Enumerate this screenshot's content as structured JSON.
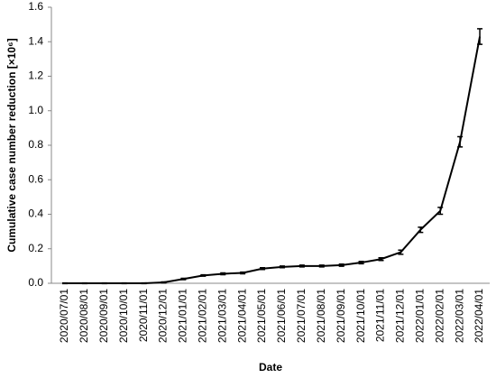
{
  "chart_data": {
    "type": "line",
    "ylabel": "Cumulative case number reduction [×10⁶]",
    "xlabel": "Date",
    "categories": [
      "2020/07/01",
      "2020/08/01",
      "2020/09/01",
      "2020/10/01",
      "2020/11/01",
      "2020/12/01",
      "2021/01/01",
      "2021/02/01",
      "2021/03/01",
      "2021/04/01",
      "2021/05/01",
      "2021/06/01",
      "2021/07/01",
      "2021/08/01",
      "2021/09/01",
      "2021/10/01",
      "2021/11/01",
      "2021/12/01",
      "2022/01/01",
      "2022/02/01",
      "2022/03/01",
      "2022/04/01"
    ],
    "series": [
      {
        "color": "#000000",
        "values": [
          0,
          0,
          0,
          0,
          0,
          0.005,
          0.025,
          0.045,
          0.055,
          0.06,
          0.085,
          0.095,
          0.1,
          0.1,
          0.105,
          0.12,
          0.14,
          0.18,
          0.31,
          0.42,
          0.82,
          1.43
        ],
        "errors": [
          0.002,
          0.002,
          0.002,
          0.002,
          0.002,
          0.003,
          0.004,
          0.004,
          0.005,
          0.005,
          0.005,
          0.005,
          0.005,
          0.005,
          0.006,
          0.007,
          0.008,
          0.012,
          0.015,
          0.02,
          0.03,
          0.045
        ]
      }
    ],
    "ylim": [
      0,
      1.6
    ],
    "yticks": [
      {
        "value": 0,
        "label": "0.0"
      },
      {
        "value": 0.2,
        "label": "0.2"
      },
      {
        "value": 0.4,
        "label": "0.4"
      },
      {
        "value": 0.6,
        "label": "0.6"
      },
      {
        "value": 0.8,
        "label": "0.8"
      },
      {
        "value": 1.0,
        "label": "1.0"
      },
      {
        "value": 1.2,
        "label": "1.2"
      },
      {
        "value": 1.4,
        "label": "1.4"
      },
      {
        "value": 1.6,
        "label": "1.6"
      }
    ],
    "grid": false
  }
}
